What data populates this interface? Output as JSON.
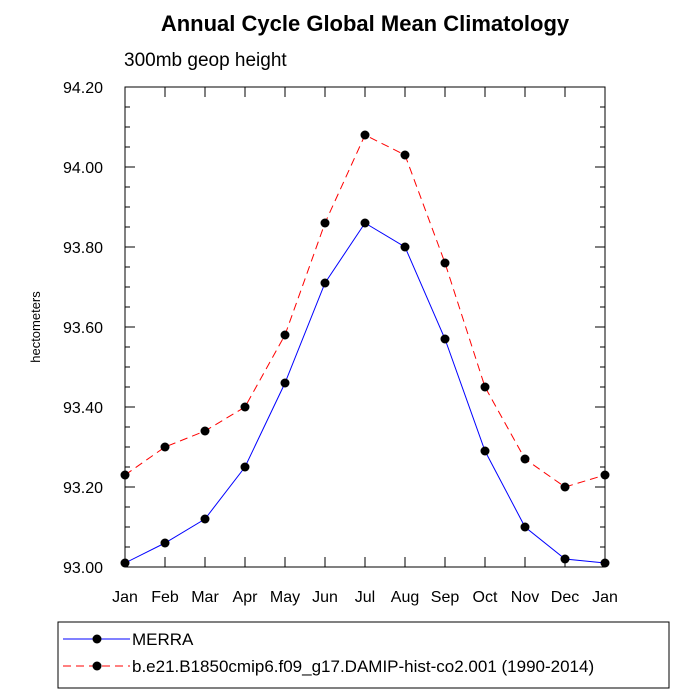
{
  "chart_data": {
    "type": "line",
    "title": "Annual Cycle Global Mean Climatology",
    "subtitle": "300mb geop height",
    "ylabel": "hectometers",
    "xlabel": "",
    "categories": [
      "Jan",
      "Feb",
      "Mar",
      "Apr",
      "May",
      "Jun",
      "Jul",
      "Aug",
      "Sep",
      "Oct",
      "Nov",
      "Dec",
      "Jan"
    ],
    "ylim": [
      93.0,
      94.2
    ],
    "y_major_ticks": [
      93.0,
      93.2,
      93.4,
      93.6,
      93.8,
      94.0,
      94.2
    ],
    "y_tick_labels": [
      "93.00",
      "93.20",
      "93.40",
      "93.60",
      "93.80",
      "94.00",
      "94.20"
    ],
    "y_minor_step": 0.05,
    "grid": false,
    "legend_position": "bottom",
    "series": [
      {
        "name": "MERRA",
        "color": "#0000ff",
        "line_style": "solid",
        "marker": "filled-circle",
        "values": [
          93.01,
          93.06,
          93.12,
          93.25,
          93.46,
          93.71,
          93.86,
          93.8,
          93.57,
          93.29,
          93.1,
          93.02,
          93.01
        ]
      },
      {
        "name": "b.e21.B1850cmip6.f09_g17.DAMIP-hist-co2.001 (1990-2014)",
        "color": "#ff0000",
        "line_style": "dashed",
        "marker": "filled-circle",
        "values": [
          93.23,
          93.3,
          93.34,
          93.4,
          93.58,
          93.86,
          94.08,
          94.03,
          93.76,
          93.45,
          93.27,
          93.2,
          93.23
        ]
      }
    ]
  }
}
